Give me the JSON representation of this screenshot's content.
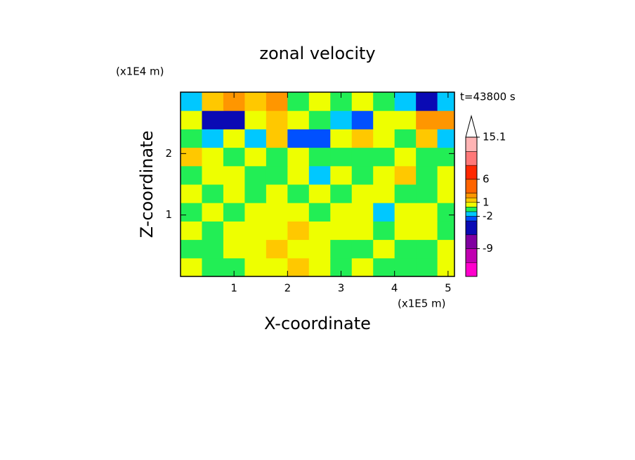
{
  "chart_data": {
    "type": "contour",
    "title": "zonal velocity",
    "x_label": "X-coordinate",
    "y_label": "Z-coordinate",
    "x_unit": "(x1E5 m)",
    "y_unit": "(x1E4 m)",
    "annotation": "t=43800 s",
    "xlim": [
      0,
      5.12
    ],
    "ylim": [
      0,
      3
    ],
    "xticks": [
      1,
      2,
      3,
      4,
      5
    ],
    "yticks": [
      1,
      2
    ],
    "x": [
      0.2,
      0.6,
      1.0,
      1.4,
      1.8,
      2.2,
      2.6,
      3.0,
      3.4,
      3.8,
      4.2,
      4.6,
      5.0
    ],
    "y": [
      0.15,
      0.45,
      0.75,
      1.05,
      1.35,
      1.65,
      1.95,
      2.25,
      2.55,
      2.85
    ],
    "z": [
      [
        0.5,
        -0.5,
        -0.5,
        0.5,
        0.5,
        1.5,
        0.5,
        -0.5,
        0.5,
        -0.5,
        -0.5,
        -0.5,
        0.5
      ],
      [
        -0.5,
        -0.5,
        0.5,
        0.5,
        1.5,
        0.5,
        0.5,
        -0.5,
        -0.5,
        0.5,
        -0.5,
        -0.5,
        0.5
      ],
      [
        0.5,
        -0.5,
        0.5,
        0.5,
        0.5,
        1.5,
        0.5,
        0.5,
        0.5,
        -0.5,
        0.5,
        0.5,
        -0.5
      ],
      [
        -0.5,
        0.5,
        -0.5,
        0.5,
        0.5,
        0.5,
        -0.5,
        0.5,
        0.5,
        -1.5,
        0.5,
        0.5,
        -0.5
      ],
      [
        0.5,
        -0.5,
        0.5,
        -0.5,
        0.5,
        -0.5,
        0.5,
        -0.5,
        0.5,
        0.5,
        -0.5,
        -0.5,
        0.5
      ],
      [
        -0.5,
        0.5,
        0.5,
        -0.5,
        -0.5,
        0.5,
        -1.5,
        0.5,
        -0.5,
        0.5,
        1.5,
        -0.5,
        0.5
      ],
      [
        1.5,
        0.5,
        -0.5,
        0.5,
        -0.5,
        0.5,
        -0.5,
        -0.5,
        -0.5,
        -0.5,
        0.5,
        -0.5,
        -0.5
      ],
      [
        -0.5,
        -1.5,
        0.5,
        -1.5,
        1.5,
        -2.5,
        -2.5,
        0.5,
        1.5,
        0.5,
        -0.5,
        1.5,
        -1.5
      ],
      [
        0.5,
        -4,
        -4,
        0.5,
        1.5,
        0.5,
        -0.5,
        -1.5,
        -3,
        0.5,
        0.5,
        2.5,
        2.5
      ],
      [
        -1.5,
        1.5,
        2.5,
        1.5,
        2.5,
        -0.5,
        0.5,
        -0.5,
        0.5,
        -0.5,
        -1.5,
        -4,
        -1.5
      ]
    ],
    "clim": [
      -15,
      15.1
    ],
    "levels": [
      -12,
      -9,
      -6,
      -3,
      -2,
      -1,
      0,
      1,
      2,
      3,
      6,
      9,
      12,
      15.1
    ],
    "colors": [
      "#ff00cc",
      "#c000b0",
      "#8000a0",
      "#0a0ab4",
      "#0050ff",
      "#00c8ff",
      "#22ee55",
      "#eeff00",
      "#ffc800",
      "#ff9600",
      "#ff6400",
      "#ff2800",
      "#ff7878",
      "#ffb4b4",
      "#ffffff"
    ],
    "colorbar_ticks": [
      15.1,
      6,
      1,
      -2,
      -9
    ]
  }
}
